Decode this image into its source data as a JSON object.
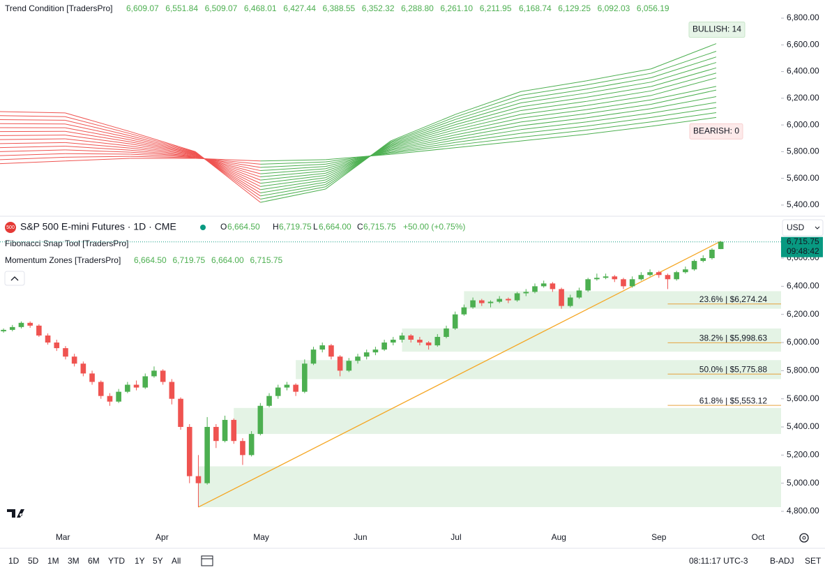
{
  "chart_data": [
    {
      "type": "line",
      "legend": {
        "name": "Trend Condition [TradersPro]",
        "values": [
          "6,609.07",
          "6,551.84",
          "6,509.07",
          "6,468.01",
          "6,427.44",
          "6,388.55",
          "6,352.32",
          "6,288.80",
          "6,261.10",
          "6,211.95",
          "6,168.74",
          "6,129.25",
          "6,092.03",
          "6,056.19"
        ]
      },
      "badges": {
        "bullish": "BULLISH: 14",
        "bearish": "BEARISH: 0"
      },
      "bullish_color": "#4caf50",
      "bearish_color": "#ef5350",
      "xlim": [
        0,
        11
      ],
      "ylim": [
        5316,
        6936
      ],
      "yticks": [
        {
          "value": 5400,
          "label": "5,400.00"
        },
        {
          "value": 5600,
          "label": "5,600.00"
        },
        {
          "value": 5800,
          "label": "5,800.00"
        },
        {
          "value": 6000,
          "label": "6,000.00"
        },
        {
          "value": 6200,
          "label": "6,200.00"
        },
        {
          "value": 6400,
          "label": "6,400.00"
        },
        {
          "value": 6600,
          "label": "6,600.00"
        },
        {
          "value": 6800,
          "label": "6,800.00"
        }
      ],
      "series": [
        {
          "values": [
            6100,
            6090,
            5950,
            5800,
            5420,
            5520,
            5880,
            6080,
            6250,
            6330,
            6420,
            6609.07
          ]
        },
        {
          "values": [
            6070,
            6062,
            5935,
            5796,
            5444,
            5537,
            5872,
            6061,
            6222,
            6299,
            6387,
            6551.84
          ]
        },
        {
          "values": [
            6040,
            6035,
            5919,
            5792,
            5468,
            5554,
            5865,
            6042,
            6193,
            6268,
            6354,
            6509.07
          ]
        },
        {
          "values": [
            6010,
            6007,
            5904,
            5788,
            5491,
            5571,
            5857,
            6022,
            6165,
            6238,
            6321,
            6468.01
          ]
        },
        {
          "values": [
            5980,
            5979,
            5888,
            5785,
            5515,
            5588,
            5849,
            6003,
            6136,
            6207,
            6288,
            6427.44
          ]
        },
        {
          "values": [
            5950,
            5952,
            5873,
            5781,
            5539,
            5605,
            5842,
            5984,
            6108,
            6176,
            6255,
            6388.55
          ]
        },
        {
          "values": [
            5920,
            5924,
            5858,
            5777,
            5563,
            5622,
            5834,
            5965,
            6079,
            6145,
            6221,
            6352.32
          ]
        },
        {
          "values": [
            5890,
            5896,
            5842,
            5773,
            5587,
            5638,
            5826,
            5946,
            6051,
            6114,
            6188,
            6288.8
          ]
        },
        {
          "values": [
            5860,
            5868,
            5827,
            5769,
            5611,
            5655,
            5818,
            5926,
            6022,
            6084,
            6155,
            6261.1
          ]
        },
        {
          "values": [
            5830,
            5841,
            5811,
            5765,
            5634,
            5672,
            5811,
            5907,
            5994,
            6053,
            6122,
            6211.95
          ]
        },
        {
          "values": [
            5800,
            5813,
            5796,
            5762,
            5658,
            5689,
            5803,
            5888,
            5965,
            6022,
            6089,
            6168.74
          ]
        },
        {
          "values": [
            5770,
            5785,
            5781,
            5758,
            5682,
            5706,
            5795,
            5869,
            5937,
            5991,
            6056,
            6129.25
          ]
        },
        {
          "values": [
            5740,
            5758,
            5765,
            5754,
            5706,
            5723,
            5788,
            5850,
            5908,
            5961,
            6023,
            6092.03
          ]
        },
        {
          "values": [
            5710,
            5730,
            5750,
            5750,
            5730,
            5740,
            5780,
            5830,
            5880,
            5930,
            5990,
            6056.19
          ]
        }
      ]
    },
    {
      "type": "candlestick",
      "header": {
        "icon": "500",
        "title": "S&P 500 E-mini Futures · 1D · CME",
        "o": "O",
        "o_value": "6,664.50",
        "h": "H",
        "h_value": "6,719.75",
        "l": "L",
        "l_value": "6,664.00",
        "c": "C",
        "c_value": "6,715.75",
        "change": "+50.00 (+0.75%)",
        "currency": "USD"
      },
      "indicators": {
        "fib": "Fibonacci Snap Tool [TradersPro]",
        "zones": "Momentum Zones [TradersPro]",
        "zone_values": [
          "6,664.50",
          "6,719.75",
          "6,664.00",
          "6,715.75"
        ]
      },
      "price_tag": {
        "price": "6,715.75",
        "time": "09:48:42"
      },
      "up_color": "#4caf50",
      "down_color": "#ef5350",
      "xlim": [
        -0.4,
        87.8
      ],
      "ylim": [
        4691,
        6749
      ],
      "xticks": [
        {
          "value": 6.7,
          "label": "Mar"
        },
        {
          "value": 17.9,
          "label": "Apr"
        },
        {
          "value": 29.1,
          "label": "May"
        },
        {
          "value": 40.3,
          "label": "Jun"
        },
        {
          "value": 51.1,
          "label": "Jul"
        },
        {
          "value": 62.7,
          "label": "Aug"
        },
        {
          "value": 74.0,
          "label": "Sep"
        },
        {
          "value": 85.2,
          "label": "Oct"
        }
      ],
      "yticks": [
        {
          "value": 4800,
          "label": "4,800.00"
        },
        {
          "value": 5000,
          "label": "5,000.00"
        },
        {
          "value": 5200,
          "label": "5,200.00"
        },
        {
          "value": 5400,
          "label": "5,400.00"
        },
        {
          "value": 5600,
          "label": "5,600.00"
        },
        {
          "value": 5800,
          "label": "5,800.00"
        },
        {
          "value": 6000,
          "label": "6,000.00"
        },
        {
          "value": 6200,
          "label": "6,200.00"
        },
        {
          "value": 6400,
          "label": "6,400.00"
        },
        {
          "value": 6600,
          "label": "6,600.00"
        }
      ],
      "zones": [
        {
          "from": 52,
          "low": 6240,
          "high": 6365
        },
        {
          "from": 45,
          "low": 5935,
          "high": 6100
        },
        {
          "from": 33,
          "low": 5740,
          "high": 5875
        },
        {
          "from": 26,
          "low": 5350,
          "high": 5535
        },
        {
          "from": 22,
          "low": 4830,
          "high": 5120
        }
      ],
      "fib_from": 75,
      "fib_levels": [
        {
          "value": 6274.24,
          "label": "23.6% | $6,274.24"
        },
        {
          "value": 5998.63,
          "label": "38.2% | $5,998.63"
        },
        {
          "value": 5775.88,
          "label": "50.0% | $5,775.88"
        },
        {
          "value": 5553.12,
          "label": "61.8% | $5,553.12"
        }
      ],
      "trendline": [
        [
          22,
          4830
        ],
        [
          81,
          6720
        ]
      ],
      "ohlc": [
        [
          6080,
          6100,
          6070,
          6090
        ],
        [
          6090,
          6125,
          6080,
          6110
        ],
        [
          6110,
          6150,
          6100,
          6140
        ],
        [
          6140,
          6150,
          6105,
          6120
        ],
        [
          6120,
          6130,
          6040,
          6050
        ],
        [
          6050,
          6065,
          5985,
          6000
        ],
        [
          6000,
          6020,
          5940,
          5960
        ],
        [
          5960,
          5975,
          5880,
          5900
        ],
        [
          5900,
          5920,
          5830,
          5850
        ],
        [
          5850,
          5865,
          5760,
          5780
        ],
        [
          5780,
          5800,
          5700,
          5720
        ],
        [
          5720,
          5730,
          5600,
          5620
        ],
        [
          5620,
          5640,
          5550,
          5580
        ],
        [
          5580,
          5670,
          5570,
          5650
        ],
        [
          5650,
          5720,
          5640,
          5700
        ],
        [
          5700,
          5730,
          5660,
          5680
        ],
        [
          5680,
          5780,
          5670,
          5760
        ],
        [
          5760,
          5830,
          5750,
          5800
        ],
        [
          5800,
          5810,
          5700,
          5720
        ],
        [
          5720,
          5740,
          5560,
          5600
        ],
        [
          5600,
          5610,
          5380,
          5400
        ],
        [
          5400,
          5420,
          5000,
          5050
        ],
        [
          5050,
          5200,
          4830,
          5000
        ],
        [
          5000,
          5470,
          4990,
          5400
        ],
        [
          5400,
          5420,
          5250,
          5300
        ],
        [
          5300,
          5480,
          5290,
          5450
        ],
        [
          5450,
          5460,
          5280,
          5300
        ],
        [
          5300,
          5320,
          5130,
          5200
        ],
        [
          5200,
          5370,
          5190,
          5350
        ],
        [
          5350,
          5570,
          5340,
          5550
        ],
        [
          5550,
          5640,
          5540,
          5620
        ],
        [
          5620,
          5700,
          5600,
          5680
        ],
        [
          5680,
          5720,
          5660,
          5700
        ],
        [
          5700,
          5710,
          5620,
          5650
        ],
        [
          5650,
          5880,
          5640,
          5850
        ],
        [
          5850,
          5970,
          5840,
          5950
        ],
        [
          5950,
          6000,
          5930,
          5980
        ],
        [
          5980,
          5990,
          5880,
          5900
        ],
        [
          5900,
          5910,
          5760,
          5800
        ],
        [
          5800,
          5890,
          5790,
          5870
        ],
        [
          5870,
          5920,
          5850,
          5900
        ],
        [
          5900,
          5950,
          5880,
          5930
        ],
        [
          5930,
          5970,
          5910,
          5950
        ],
        [
          5950,
          6020,
          5940,
          6000
        ],
        [
          6000,
          6040,
          5980,
          6020
        ],
        [
          6020,
          6070,
          6000,
          6050
        ],
        [
          6050,
          6060,
          6000,
          6020
        ],
        [
          6020,
          6040,
          5980,
          6000
        ],
        [
          6000,
          6010,
          5950,
          5980
        ],
        [
          5980,
          6060,
          5970,
          6040
        ],
        [
          6040,
          6120,
          6030,
          6100
        ],
        [
          6100,
          6220,
          6090,
          6200
        ],
        [
          6200,
          6270,
          6190,
          6250
        ],
        [
          6250,
          6320,
          6240,
          6300
        ],
        [
          6300,
          6310,
          6260,
          6280
        ],
        [
          6280,
          6300,
          6250,
          6290
        ],
        [
          6290,
          6330,
          6280,
          6310
        ],
        [
          6310,
          6320,
          6280,
          6300
        ],
        [
          6300,
          6360,
          6290,
          6350
        ],
        [
          6350,
          6380,
          6330,
          6360
        ],
        [
          6360,
          6420,
          6350,
          6400
        ],
        [
          6400,
          6440,
          6390,
          6420
        ],
        [
          6420,
          6430,
          6360,
          6380
        ],
        [
          6380,
          6390,
          6240,
          6260
        ],
        [
          6260,
          6340,
          6250,
          6320
        ],
        [
          6320,
          6390,
          6310,
          6370
        ],
        [
          6370,
          6460,
          6360,
          6450
        ],
        [
          6450,
          6490,
          6440,
          6460
        ],
        [
          6460,
          6490,
          6450,
          6470
        ],
        [
          6470,
          6480,
          6430,
          6450
        ],
        [
          6450,
          6460,
          6380,
          6400
        ],
        [
          6400,
          6470,
          6390,
          6450
        ],
        [
          6450,
          6500,
          6440,
          6480
        ],
        [
          6480,
          6520,
          6470,
          6500
        ],
        [
          6500,
          6510,
          6460,
          6480
        ],
        [
          6480,
          6490,
          6380,
          6450
        ],
        [
          6450,
          6510,
          6440,
          6500
        ],
        [
          6500,
          6540,
          6490,
          6520
        ],
        [
          6520,
          6590,
          6510,
          6580
        ],
        [
          6580,
          6620,
          6570,
          6600
        ],
        [
          6600,
          6670,
          6590,
          6660
        ],
        [
          6664.5,
          6719.75,
          6664,
          6715.75
        ]
      ]
    }
  ],
  "toolbar": {
    "ranges": [
      "1D",
      "5D",
      "1M",
      "3M",
      "6M",
      "YTD",
      "1Y",
      "5Y",
      "All"
    ],
    "clock": "08:11:17 UTC-3",
    "adjust": "B-ADJ",
    "session": "SET"
  }
}
